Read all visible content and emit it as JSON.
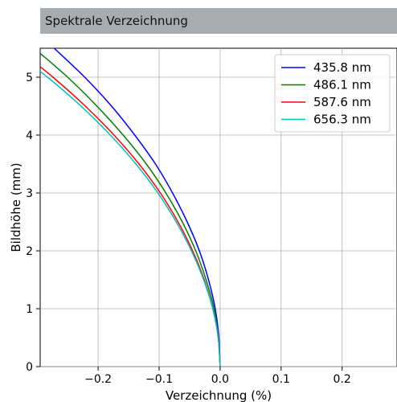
{
  "panel": {
    "title": "Spektrale Verzeichnung"
  },
  "chart_data": {
    "type": "line",
    "title": "",
    "xlabel": "Verzeichnung (%)",
    "ylabel": "Bildhöhe (mm)",
    "xlim": [
      -0.295,
      0.29
    ],
    "ylim": [
      0,
      5.5
    ],
    "xticks": [
      -0.2,
      -0.1,
      0.0,
      0.1,
      0.2
    ],
    "xtick_labels": [
      "−0.2",
      "−0.1",
      "0.0",
      "0.1",
      "0.2"
    ],
    "yticks": [
      0,
      1,
      2,
      3,
      4,
      5
    ],
    "ytick_labels": [
      "0",
      "1",
      "2",
      "3",
      "4",
      "5"
    ],
    "grid": true,
    "legend_position": "top-right",
    "y": [
      0,
      0.5,
      1,
      1.5,
      2,
      2.5,
      3,
      3.5,
      4,
      4.5,
      5,
      5.5
    ],
    "series": [
      {
        "name": "435.8 nm",
        "color": "#0000ff",
        "x": [
          0,
          -0.002,
          -0.008,
          -0.019,
          -0.034,
          -0.054,
          -0.078,
          -0.106,
          -0.14,
          -0.178,
          -0.222,
          -0.272
        ]
      },
      {
        "name": "486.1 nm",
        "color": "#008000",
        "x": [
          0,
          -0.003,
          -0.01,
          -0.023,
          -0.04,
          -0.062,
          -0.089,
          -0.121,
          -0.159,
          -0.202,
          -0.25,
          -0.305
        ]
      },
      {
        "name": "587.6 nm",
        "color": "#ff0000",
        "x": [
          0,
          -0.003,
          -0.012,
          -0.026,
          -0.045,
          -0.069,
          -0.098,
          -0.133,
          -0.174,
          -0.221,
          -0.274,
          -0.333
        ]
      },
      {
        "name": "656.3 nm",
        "color": "#00bfbf",
        "x": [
          0,
          -0.003,
          -0.012,
          -0.027,
          -0.047,
          -0.072,
          -0.102,
          -0.138,
          -0.18,
          -0.228,
          -0.283,
          -0.345
        ]
      }
    ]
  }
}
